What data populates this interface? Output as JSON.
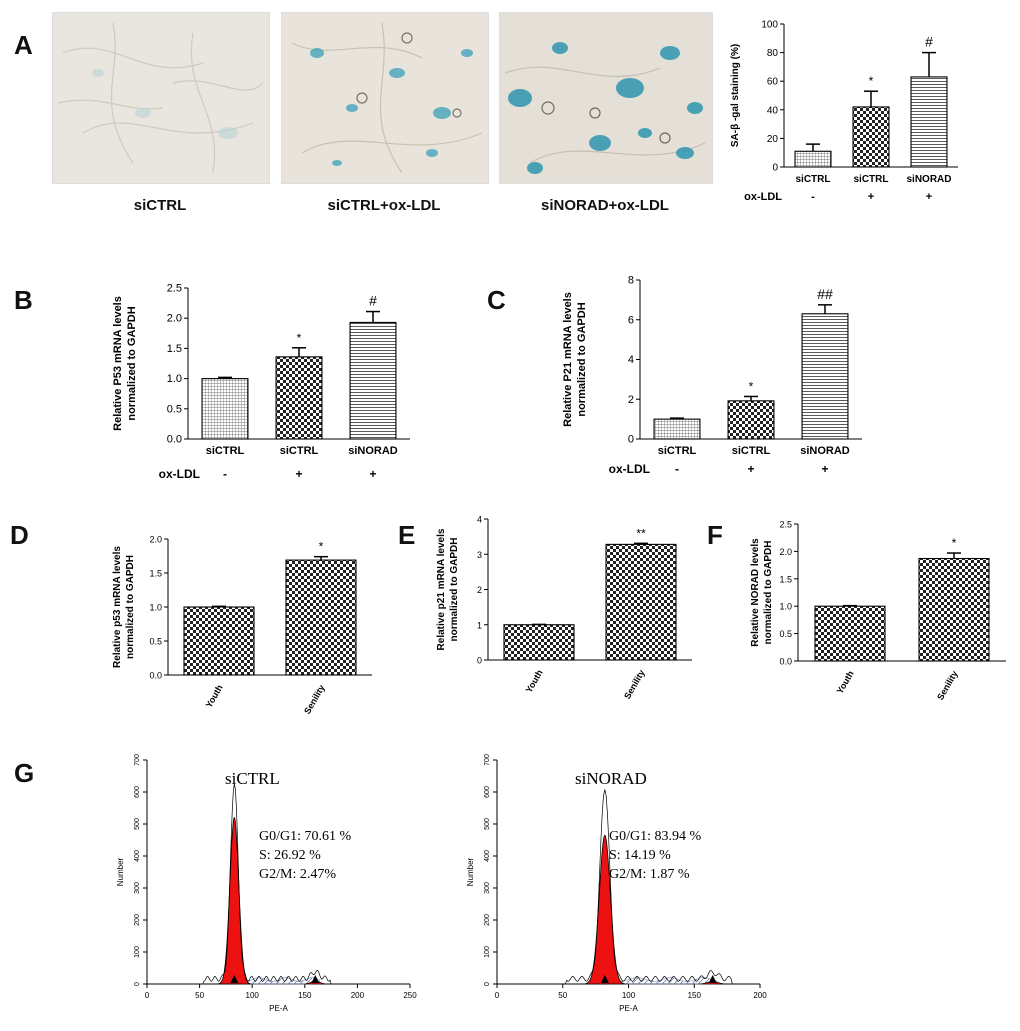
{
  "panels": {
    "A": "A",
    "B": "B",
    "C": "C",
    "D": "D",
    "E": "E",
    "F": "F",
    "G": "G"
  },
  "micrographs": [
    {
      "label": "siCTRL"
    },
    {
      "label": "siCTRL+ox-LDL"
    },
    {
      "label": "siNORAD+ox-LDL"
    }
  ],
  "colors": {
    "stain_blue": "#3aa0b8",
    "cell_bg": "#e8e4dc",
    "histogram_fill": "#ee1111"
  },
  "chart_data": [
    {
      "id": "A",
      "type": "bar",
      "ylabel": "SA-β -gal staining (%)",
      "ylim": [
        0,
        100
      ],
      "yticks": [
        "0",
        "20",
        "40",
        "60",
        "80",
        "100"
      ],
      "categories": [
        "siCTRL",
        "siCTRL",
        "siNORAD"
      ],
      "values": [
        11,
        42,
        63
      ],
      "errors": [
        5,
        11,
        17
      ],
      "annotations": [
        "",
        "*",
        "#"
      ],
      "patterns": [
        "grid",
        "check",
        "hlines"
      ],
      "row_label": "ox-LDL",
      "row_values": [
        "-",
        "+",
        "+"
      ]
    },
    {
      "id": "B",
      "type": "bar",
      "ylabel": "Relative P53 mRNA levels normalized to GAPDH",
      "ylim": [
        0,
        2.5
      ],
      "yticks": [
        "0.0",
        "0.5",
        "1.0",
        "1.5",
        "2.0",
        "2.5"
      ],
      "categories": [
        "siCTRL",
        "siCTRL",
        "siNORAD"
      ],
      "values": [
        1.0,
        1.36,
        1.93
      ],
      "errors": [
        0.02,
        0.15,
        0.18
      ],
      "annotations": [
        "",
        "*",
        "#"
      ],
      "patterns": [
        "grid",
        "check",
        "hlines"
      ],
      "row_label": "ox-LDL",
      "row_values": [
        "-",
        "+",
        "+"
      ]
    },
    {
      "id": "C",
      "type": "bar",
      "ylabel": "Relative P21 mRNA levels normalized to GAPDH",
      "ylim": [
        0,
        8
      ],
      "yticks": [
        "0",
        "2",
        "4",
        "6",
        "8"
      ],
      "categories": [
        "siCTRL",
        "siCTRL",
        "siNORAD"
      ],
      "values": [
        1.0,
        1.92,
        6.3
      ],
      "errors": [
        0.05,
        0.22,
        0.45
      ],
      "annotations": [
        "",
        "*",
        "##"
      ],
      "patterns": [
        "grid",
        "check",
        "hlines"
      ],
      "row_label": "ox-LDL",
      "row_values": [
        "-",
        "+",
        "+"
      ]
    },
    {
      "id": "D",
      "type": "bar",
      "ylabel": "Relative p53 mRNA levels normalized to GAPDH",
      "ylim": [
        0,
        2.0
      ],
      "yticks": [
        "0.0",
        "0.5",
        "1.0",
        "1.5",
        "2.0"
      ],
      "categories": [
        "Youth",
        "Senility"
      ],
      "values": [
        1.0,
        1.69
      ],
      "errors": [
        0.01,
        0.05
      ],
      "annotations": [
        "",
        "*"
      ],
      "patterns": [
        "check",
        "check"
      ]
    },
    {
      "id": "E",
      "type": "bar",
      "ylabel": "Relative p21 mRNA levels normalized to GAPDH",
      "ylim": [
        0,
        4
      ],
      "yticks": [
        "0",
        "1",
        "2",
        "3",
        "4"
      ],
      "categories": [
        "Youth",
        "Senility"
      ],
      "values": [
        1.0,
        3.28
      ],
      "errors": [
        0.01,
        0.03
      ],
      "annotations": [
        "",
        "**"
      ],
      "patterns": [
        "check",
        "check"
      ]
    },
    {
      "id": "F",
      "type": "bar",
      "ylabel": "Relative NORAD levels normalized to GAPDH",
      "ylim": [
        0,
        2.5
      ],
      "yticks": [
        "0.0",
        "0.5",
        "1.0",
        "1.5",
        "2.0",
        "2.5"
      ],
      "categories": [
        "Youth",
        "Senility"
      ],
      "values": [
        1.0,
        1.87
      ],
      "errors": [
        0.01,
        0.1
      ],
      "annotations": [
        "",
        "*"
      ],
      "patterns": [
        "check",
        "check"
      ]
    },
    {
      "id": "G1",
      "type": "area",
      "title": "siCTRL",
      "xlabel": "PE-A",
      "ylabel": "Number",
      "xlim": [
        0,
        250
      ],
      "ylim": [
        0,
        700
      ],
      "xticks": [
        "0",
        "50",
        "100",
        "150",
        "200",
        "250"
      ],
      "yticks": [
        "0",
        "100",
        "200",
        "300",
        "400",
        "500",
        "600",
        "700"
      ],
      "g1_peak": {
        "center": 83,
        "height": 520,
        "envelope_height": 615
      },
      "g2_peak": {
        "center": 160,
        "height": 10
      },
      "stats": [
        "G0/G1: 70.61 %",
        "S: 26.92 %",
        "G2/M: 2.47%"
      ]
    },
    {
      "id": "G2",
      "type": "area",
      "title": "siNORAD",
      "xlabel": "PE-A",
      "ylabel": "Number",
      "xlim": [
        0,
        200
      ],
      "ylim": [
        0,
        700
      ],
      "xticks": [
        "0",
        "50",
        "100",
        "150",
        "200"
      ],
      "yticks": [
        "0",
        "100",
        "200",
        "300",
        "400",
        "500",
        "600",
        "700"
      ],
      "g1_peak": {
        "center": 82,
        "height": 465,
        "envelope_height": 600
      },
      "g2_peak": {
        "center": 164,
        "height": 8
      },
      "stats": [
        "G0/G1: 83.94 %",
        "S: 14.19 %",
        "G2/M: 1.87 %"
      ]
    }
  ]
}
